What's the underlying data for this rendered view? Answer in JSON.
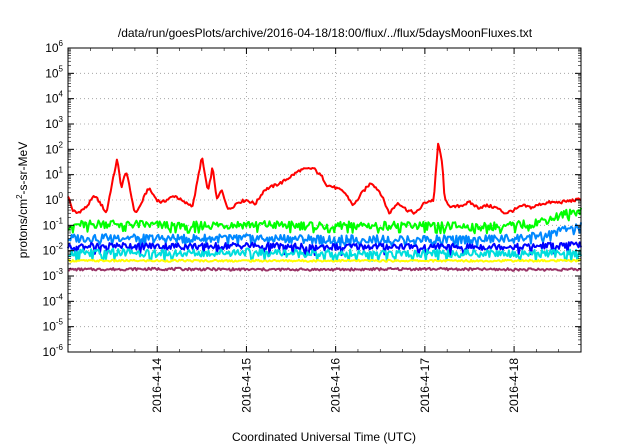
{
  "chart_data": {
    "type": "line",
    "title": "/data/run/goesPlots/archive/2016-04-18/18:00/flux/../flux/5daysMoonFluxes.txt",
    "xlabel": "Coordinated Universal Time (UTC)",
    "ylabel": {
      "prefix": "protons/cm",
      "sup": "2",
      "suffix": "-s-sr-MeV"
    },
    "y_scale": "log",
    "ylim": [
      1e-06,
      1000000.0
    ],
    "y_ticks": [
      {
        "base": "10",
        "exp": "-6"
      },
      {
        "base": "10",
        "exp": "-5"
      },
      {
        "base": "10",
        "exp": "-4"
      },
      {
        "base": "10",
        "exp": "-3"
      },
      {
        "base": "10",
        "exp": "-2"
      },
      {
        "base": "10",
        "exp": "-1"
      },
      {
        "base": "10",
        "exp": "0"
      },
      {
        "base": "10",
        "exp": "1"
      },
      {
        "base": "10",
        "exp": "2"
      },
      {
        "base": "10",
        "exp": "3"
      },
      {
        "base": "10",
        "exp": "4"
      },
      {
        "base": "10",
        "exp": "5"
      },
      {
        "base": "10",
        "exp": "6"
      }
    ],
    "xlim": [
      "2016-04-13 00:00",
      "2016-04-18 18:00"
    ],
    "x_ticks": [
      "2016-4-14",
      "2016-4-15",
      "2016-4-16",
      "2016-4-17",
      "2016-4-18"
    ],
    "grid": true,
    "series": [
      {
        "color": "#ff0000",
        "x": [
          13.0,
          13.05,
          13.1,
          13.2,
          13.3,
          13.38,
          13.43,
          13.48,
          13.55,
          13.6,
          13.65,
          13.75,
          13.8,
          13.9,
          14.0,
          14.05,
          14.2,
          14.3,
          14.4,
          14.5,
          14.57,
          14.62,
          14.67,
          14.72,
          14.8,
          14.9,
          15.0,
          15.1,
          15.2,
          15.4,
          15.6,
          15.75,
          15.85,
          15.9,
          16.0,
          16.1,
          16.2,
          16.3,
          16.4,
          16.5,
          16.6,
          16.7,
          16.8,
          16.9,
          17.0,
          17.1,
          17.15,
          17.2,
          17.22,
          17.25,
          17.3,
          17.4,
          17.5,
          17.6,
          17.7,
          17.8,
          17.9,
          18.0,
          18.1,
          18.2,
          18.3,
          18.4,
          18.5,
          18.6,
          18.7,
          18.75
        ],
        "y": [
          1.5,
          0.4,
          0.3,
          0.5,
          1.5,
          0.6,
          0.3,
          2.5,
          40,
          3,
          15,
          0.3,
          0.5,
          3,
          1,
          0.8,
          1.5,
          0.8,
          0.6,
          50,
          2,
          20,
          1,
          2.5,
          0.4,
          0.8,
          1,
          0.7,
          2.5,
          5,
          15,
          18,
          8,
          4,
          3,
          2,
          0.6,
          2,
          5,
          2,
          0.3,
          0.8,
          0.4,
          0.3,
          0.8,
          1,
          200,
          20,
          1,
          0.8,
          0.5,
          0.6,
          0.8,
          0.5,
          0.6,
          0.5,
          0.3,
          0.4,
          0.6,
          0.5,
          0.7,
          0.8,
          0.8,
          0.9,
          1,
          1.1
        ]
      },
      {
        "color": "#00ff00",
        "x": [
          13.0,
          13.5,
          14.0,
          14.5,
          15.0,
          15.5,
          16.0,
          16.5,
          17.0,
          17.5,
          18.0,
          18.2,
          18.4,
          18.6,
          18.75
        ],
        "y": [
          0.1,
          0.12,
          0.1,
          0.1,
          0.11,
          0.1,
          0.1,
          0.1,
          0.1,
          0.09,
          0.1,
          0.12,
          0.18,
          0.3,
          0.4
        ]
      },
      {
        "color": "#0088ff",
        "x": [
          13.0,
          13.5,
          14.0,
          14.5,
          15.0,
          15.5,
          16.0,
          16.5,
          17.0,
          17.5,
          18.0,
          18.3,
          18.5,
          18.75
        ],
        "y": [
          0.03,
          0.035,
          0.03,
          0.03,
          0.032,
          0.03,
          0.028,
          0.03,
          0.03,
          0.028,
          0.03,
          0.04,
          0.06,
          0.1
        ]
      },
      {
        "color": "#0000ff",
        "x": [
          13.0,
          13.5,
          14.0,
          14.5,
          15.0,
          15.5,
          16.0,
          16.5,
          17.0,
          17.5,
          18.0,
          18.5,
          18.75
        ],
        "y": [
          0.015,
          0.016,
          0.015,
          0.015,
          0.016,
          0.015,
          0.014,
          0.015,
          0.015,
          0.014,
          0.015,
          0.016,
          0.017
        ]
      },
      {
        "color": "#00dddd",
        "x": [
          13.0,
          13.5,
          14.0,
          14.5,
          15.0,
          15.5,
          16.0,
          16.5,
          17.0,
          17.5,
          18.0,
          18.5,
          18.75
        ],
        "y": [
          0.008,
          0.009,
          0.008,
          0.008,
          0.009,
          0.008,
          0.008,
          0.008,
          0.008,
          0.008,
          0.008,
          0.008,
          0.008
        ]
      },
      {
        "color": "#ffff00",
        "x": [
          13.0,
          14.0,
          15.0,
          16.0,
          17.0,
          18.0,
          18.75
        ],
        "y": [
          0.004,
          0.004,
          0.004,
          0.004,
          0.004,
          0.004,
          0.004
        ]
      },
      {
        "color": "#993366",
        "x": [
          13.0,
          14.0,
          15.0,
          16.0,
          17.0,
          18.0,
          18.75
        ],
        "y": [
          0.0018,
          0.0019,
          0.0018,
          0.0018,
          0.0019,
          0.0018,
          0.0018
        ]
      }
    ]
  }
}
